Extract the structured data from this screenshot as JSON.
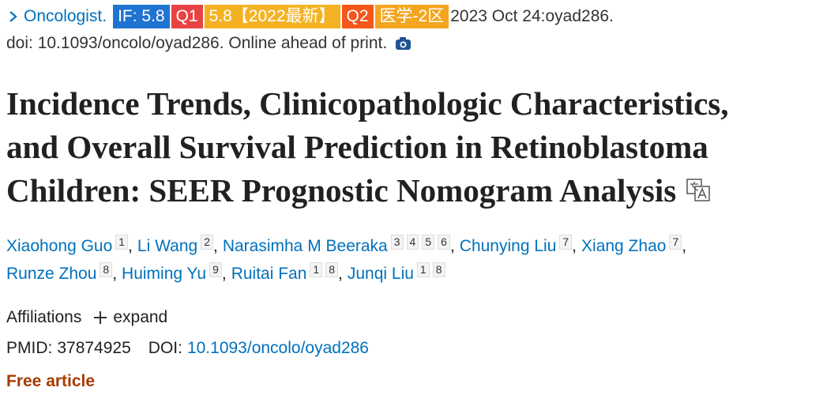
{
  "citation": {
    "journal": "Oncologist.",
    "badges": [
      {
        "text": "IF: 5.8",
        "color": "#1f74d2"
      },
      {
        "text": "Q1",
        "color": "#e84343"
      },
      {
        "text": "5.8【2022最新】",
        "color": "#f4b223"
      },
      {
        "text": "Q2",
        "color": "#f5561b"
      },
      {
        "text": "医学-2区",
        "color": "#f4a51e"
      }
    ],
    "date": "2023 Oct 24:oyad286.",
    "doi_line": "doi: 10.1093/oncolo/oyad286. Online ahead of print."
  },
  "title_lines": [
    "Incidence Trends, Clinicopathologic Characteristics,",
    "and Overall Survival Prediction in Retinoblastoma",
    "Children: SEER Prognostic Nomogram Analysis"
  ],
  "authors": [
    [
      {
        "name": "Xiaohong Guo",
        "affiliations": [
          1
        ]
      },
      {
        "name": "Li Wang",
        "affiliations": [
          2
        ]
      },
      {
        "name": "Narasimha M Beeraka",
        "affiliations": [
          3,
          4,
          5,
          6
        ]
      },
      {
        "name": "Chunying Liu",
        "affiliations": [
          7
        ]
      },
      {
        "name": "Xiang Zhao",
        "affiliations": [
          7
        ]
      }
    ],
    [
      {
        "name": "Runze Zhou",
        "affiliations": [
          8
        ]
      },
      {
        "name": "Huiming Yu",
        "affiliations": [
          9
        ]
      },
      {
        "name": "Ruitai Fan",
        "affiliations": [
          1,
          8
        ]
      },
      {
        "name": "Junqi Liu",
        "affiliations": [
          1,
          8
        ]
      }
    ]
  ],
  "affiliations": {
    "label": "Affiliations",
    "toggle": "expand"
  },
  "identifiers": {
    "pmid_label": "PMID:",
    "pmid": "37874925",
    "doi_label": "DOI:",
    "doi": "10.1093/oncolo/oyad286"
  },
  "free_article": "Free article"
}
